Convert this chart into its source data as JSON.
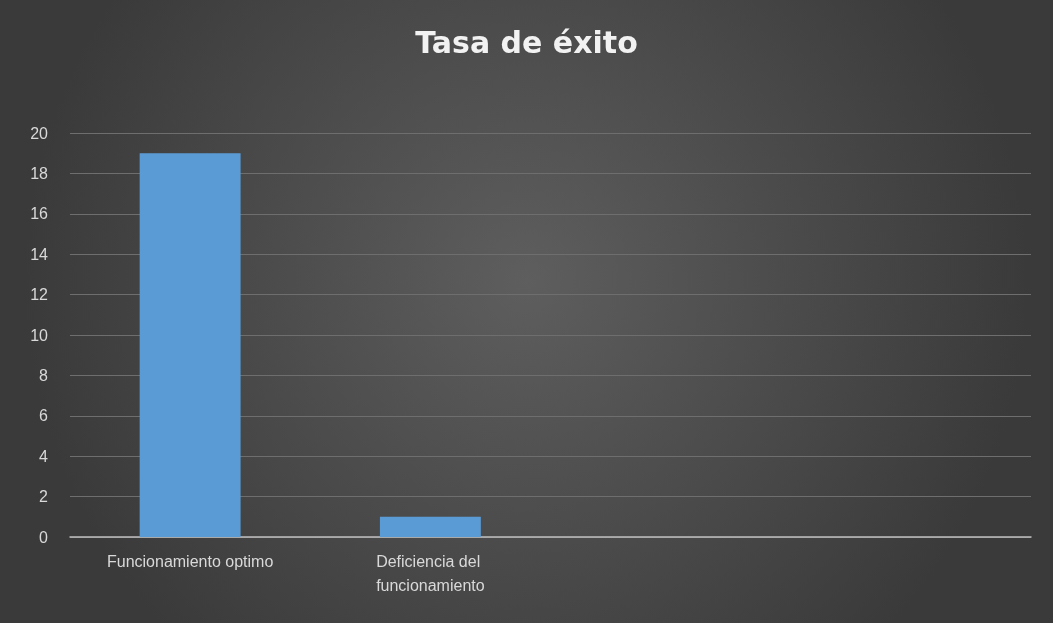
{
  "chart_data": {
    "type": "bar",
    "title": "Tasa de éxito",
    "categories": [
      "Funcionamiento optimo",
      "Deficiencia del funcionamiento",
      null,
      null
    ],
    "values": [
      19,
      1,
      null,
      null
    ],
    "color": "#5b9bd5",
    "ylim": [
      0,
      20
    ],
    "yticks": [
      0,
      2,
      4,
      6,
      8,
      10,
      12,
      14,
      16,
      18,
      20
    ],
    "grid": "y"
  }
}
